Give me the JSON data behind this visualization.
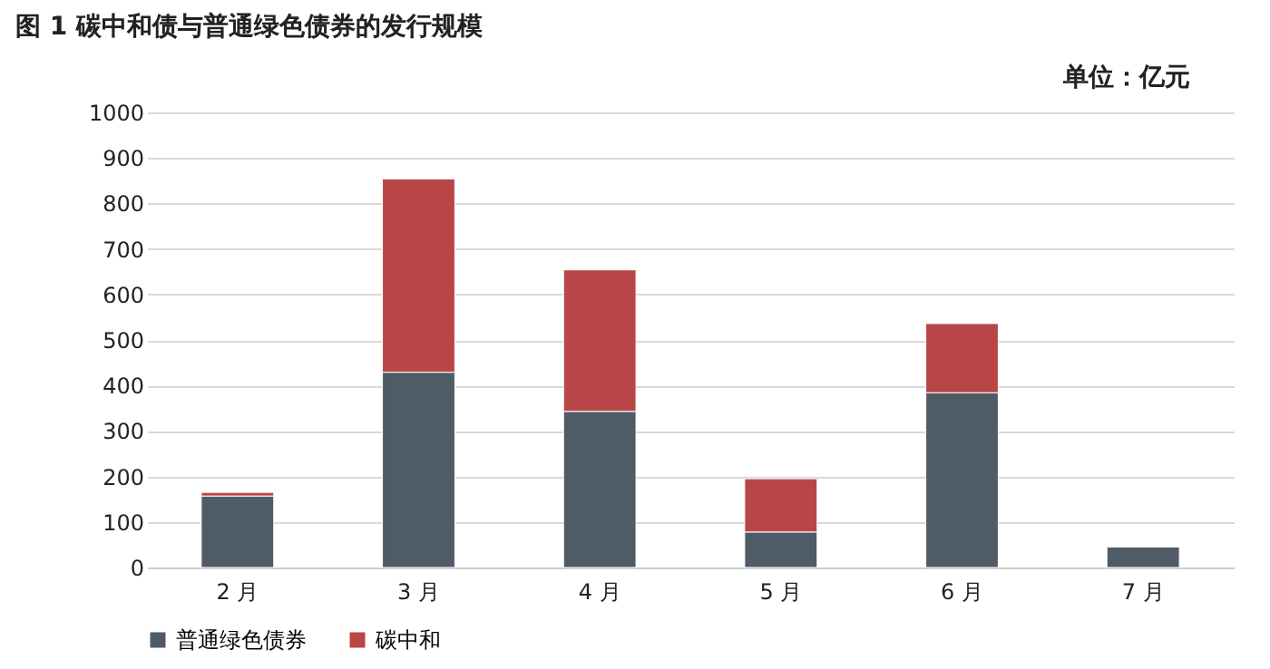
{
  "chart_data": {
    "type": "bar",
    "stacked": true,
    "title": "图 1  碳中和债与普通绿色债券的发行规模",
    "annotations": [
      "单位：亿元"
    ],
    "categories": [
      "2 月",
      "3 月",
      "4 月",
      "5 月",
      "6 月",
      "7 月"
    ],
    "series": [
      {
        "name": "普通绿色债券",
        "color": "#4f5b66",
        "values": [
          157,
          429,
          343,
          78,
          384,
          45
        ]
      },
      {
        "name": "碳中和",
        "color": "#b94646",
        "values": [
          8,
          425,
          311,
          117,
          152,
          null
        ]
      }
    ],
    "ylim": [
      0,
      1000
    ],
    "yticks": [
      0,
      100,
      200,
      300,
      400,
      500,
      600,
      700,
      800,
      900,
      1000
    ],
    "grid": "y",
    "legend": "bottom"
  }
}
